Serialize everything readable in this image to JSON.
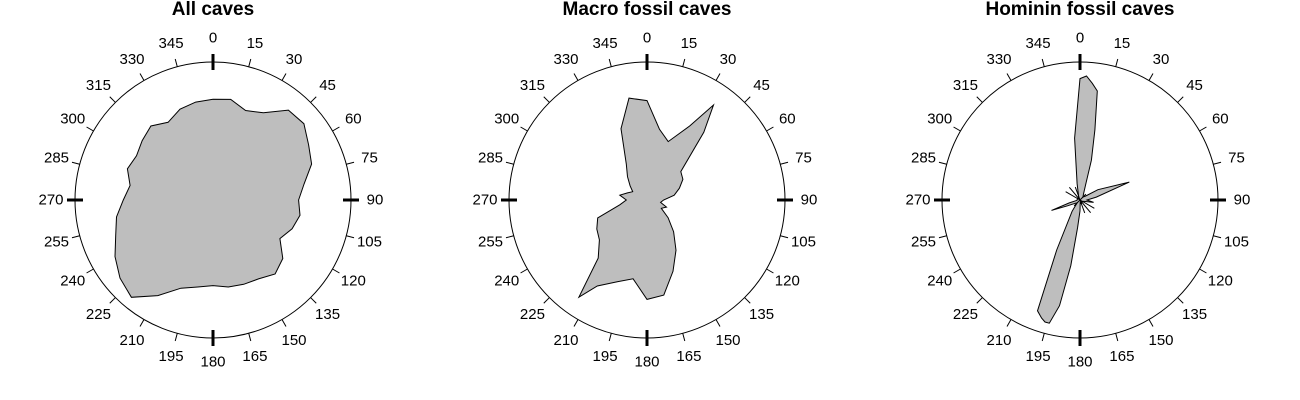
{
  "colors": {
    "fill": "#bebebe",
    "stroke": "#000000",
    "background": "#ffffff"
  },
  "chart_data": [
    {
      "type": "area",
      "subtype": "polar-rose",
      "title": "All caves",
      "angle_units": "degrees clockwise from north",
      "angle_ticks": [
        "0",
        "15",
        "30",
        "45",
        "60",
        "75",
        "90",
        "105",
        "120",
        "135",
        "150",
        "165",
        "180",
        "195",
        "210",
        "225",
        "240",
        "255",
        "270",
        "285",
        "300",
        "315",
        "330",
        "345"
      ],
      "rlim": [
        0,
        1
      ],
      "series": [
        {
          "angles": [
            0,
            10,
            20,
            30,
            40,
            50,
            60,
            70,
            80,
            90,
            100,
            110,
            120,
            130,
            140,
            150,
            160,
            170,
            180,
            190,
            200,
            210,
            220,
            230,
            240,
            250,
            260,
            270,
            280,
            290,
            300,
            310,
            320,
            330,
            340,
            350
          ],
          "values": [
            0.73,
            0.74,
            0.69,
            0.73,
            0.85,
            0.86,
            0.8,
            0.76,
            0.67,
            0.62,
            0.64,
            0.61,
            0.56,
            0.66,
            0.7,
            0.66,
            0.65,
            0.64,
            0.62,
            0.64,
            0.68,
            0.8,
            0.92,
            0.88,
            0.82,
            0.75,
            0.71,
            0.65,
            0.61,
            0.66,
            0.64,
            0.67,
            0.7,
            0.65,
            0.7,
            0.72
          ]
        }
      ]
    },
    {
      "type": "area",
      "subtype": "polar-rose",
      "title": "Macro fossil caves",
      "angle_units": "degrees clockwise from north",
      "angle_ticks": [
        "0",
        "15",
        "30",
        "45",
        "60",
        "75",
        "90",
        "105",
        "120",
        "135",
        "150",
        "165",
        "180",
        "195",
        "210",
        "225",
        "240",
        "255",
        "270",
        "285",
        "300",
        "315",
        "330",
        "345"
      ],
      "rlim": [
        0,
        1
      ],
      "series": [
        {
          "angles": [
            0,
            10,
            20,
            30,
            35,
            40,
            50,
            60,
            70,
            80,
            90,
            100,
            110,
            120,
            130,
            140,
            150,
            160,
            170,
            180,
            190,
            200,
            210,
            215,
            220,
            230,
            240,
            250,
            260,
            270,
            280,
            290,
            300,
            310,
            320,
            330,
            340,
            350
          ],
          "values": [
            0.72,
            0.52,
            0.45,
            0.62,
            0.84,
            0.64,
            0.32,
            0.3,
            0.25,
            0.2,
            0.12,
            0.1,
            0.15,
            0.12,
            0.2,
            0.3,
            0.42,
            0.55,
            0.7,
            0.72,
            0.58,
            0.63,
            0.72,
            0.86,
            0.55,
            0.45,
            0.42,
            0.38,
            0.2,
            0.15,
            0.2,
            0.15,
            0.12,
            0.16,
            0.22,
            0.3,
            0.55,
            0.75
          ]
        }
      ]
    },
    {
      "type": "area",
      "subtype": "polar-rose",
      "title": "Hominin fossil caves",
      "angle_units": "degrees clockwise from north",
      "angle_ticks": [
        "0",
        "15",
        "30",
        "45",
        "60",
        "75",
        "90",
        "105",
        "120",
        "135",
        "150",
        "165",
        "180",
        "195",
        "210",
        "225",
        "240",
        "255",
        "270",
        "285",
        "300",
        "315",
        "330",
        "345"
      ],
      "rlim": [
        0,
        1
      ],
      "series": [
        {
          "angles": [
            0,
            3,
            6,
            9,
            12,
            16,
            20,
            30,
            45,
            55,
            60,
            70,
            80,
            90,
            100,
            110,
            120,
            140,
            160,
            175,
            180,
            185,
            188,
            191,
            194,
            196,
            198,
            201,
            205,
            215,
            225,
            235,
            245,
            250,
            255,
            260,
            270,
            285,
            300,
            320,
            340,
            350,
            355
          ],
          "values": [
            0.88,
            0.9,
            0.85,
            0.8,
            0.52,
            0.3,
            0.12,
            0.05,
            0.03,
            0.05,
            0.15,
            0.38,
            0.12,
            0.05,
            0.1,
            0.03,
            0.02,
            0.02,
            0.03,
            0.02,
            0.08,
            0.2,
            0.48,
            0.78,
            0.92,
            0.92,
            0.9,
            0.86,
            0.4,
            0.1,
            0.03,
            0.04,
            0.1,
            0.22,
            0.08,
            0.03,
            0.02,
            0.02,
            0.02,
            0.02,
            0.03,
            0.12,
            0.45
          ]
        }
      ],
      "spikes": [
        {
          "angle": 300,
          "value": 0.12
        },
        {
          "angle": 320,
          "value": 0.12
        },
        {
          "angle": 340,
          "value": 0.1
        },
        {
          "angle": 45,
          "value": 0.06
        },
        {
          "angle": 120,
          "value": 0.12
        },
        {
          "angle": 140,
          "value": 0.12
        },
        {
          "angle": 160,
          "value": 0.1
        },
        {
          "angle": 225,
          "value": 0.06
        }
      ]
    }
  ]
}
